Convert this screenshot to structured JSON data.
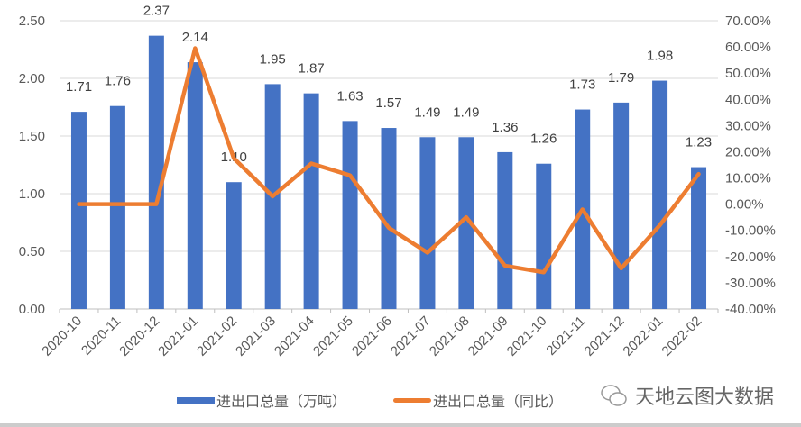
{
  "chart_data": {
    "type": "bar+line",
    "categories": [
      "2020-10",
      "2020-11",
      "2020-12",
      "2021-01",
      "2021-02",
      "2021-03",
      "2021-04",
      "2021-05",
      "2021-06",
      "2021-07",
      "2021-08",
      "2021-09",
      "2021-10",
      "2021-11",
      "2021-12",
      "2022-01",
      "2022-02"
    ],
    "series": [
      {
        "name": "进出口总量（万吨）",
        "type": "bar",
        "axis": "left",
        "color": "#4472C4",
        "values": [
          1.71,
          1.76,
          2.37,
          2.14,
          1.1,
          1.95,
          1.87,
          1.63,
          1.57,
          1.49,
          1.49,
          1.36,
          1.26,
          1.73,
          1.79,
          1.98,
          1.23
        ],
        "labels": [
          "1.71",
          "1.76",
          "2.37",
          "2.14",
          "1.10",
          "1.95",
          "1.87",
          "1.63",
          "1.57",
          "1.49",
          "1.49",
          "1.36",
          "1.26",
          "1.73",
          "1.79",
          "1.98",
          "1.23"
        ]
      },
      {
        "name": "进出口总量（同比）",
        "type": "line",
        "axis": "right",
        "color": "#ED7D31",
        "values": [
          0.0,
          0.0,
          0.0,
          59.5,
          17.5,
          3.0,
          15.5,
          11.0,
          -9.0,
          -18.5,
          -5.0,
          -23.5,
          -26.0,
          -2.0,
          -24.5,
          -8.0,
          11.5
        ]
      }
    ],
    "left_axis": {
      "ylim": [
        0,
        2.5
      ],
      "ticks": [
        "0.00",
        "0.50",
        "1.00",
        "1.50",
        "2.00",
        "2.50"
      ]
    },
    "right_axis": {
      "ylim": [
        -40,
        70
      ],
      "ticks": [
        "-40.00%",
        "-30.00%",
        "-20.00%",
        "-10.00%",
        "0.00%",
        "10.00%",
        "20.00%",
        "30.00%",
        "40.00%",
        "50.00%",
        "60.00%",
        "70.00%"
      ]
    },
    "grid": true,
    "legend_position": "bottom"
  },
  "legend": {
    "bar": "进出口总量（万吨）",
    "line": "进出口总量（同比）"
  },
  "watermark": "天地云图大数据"
}
